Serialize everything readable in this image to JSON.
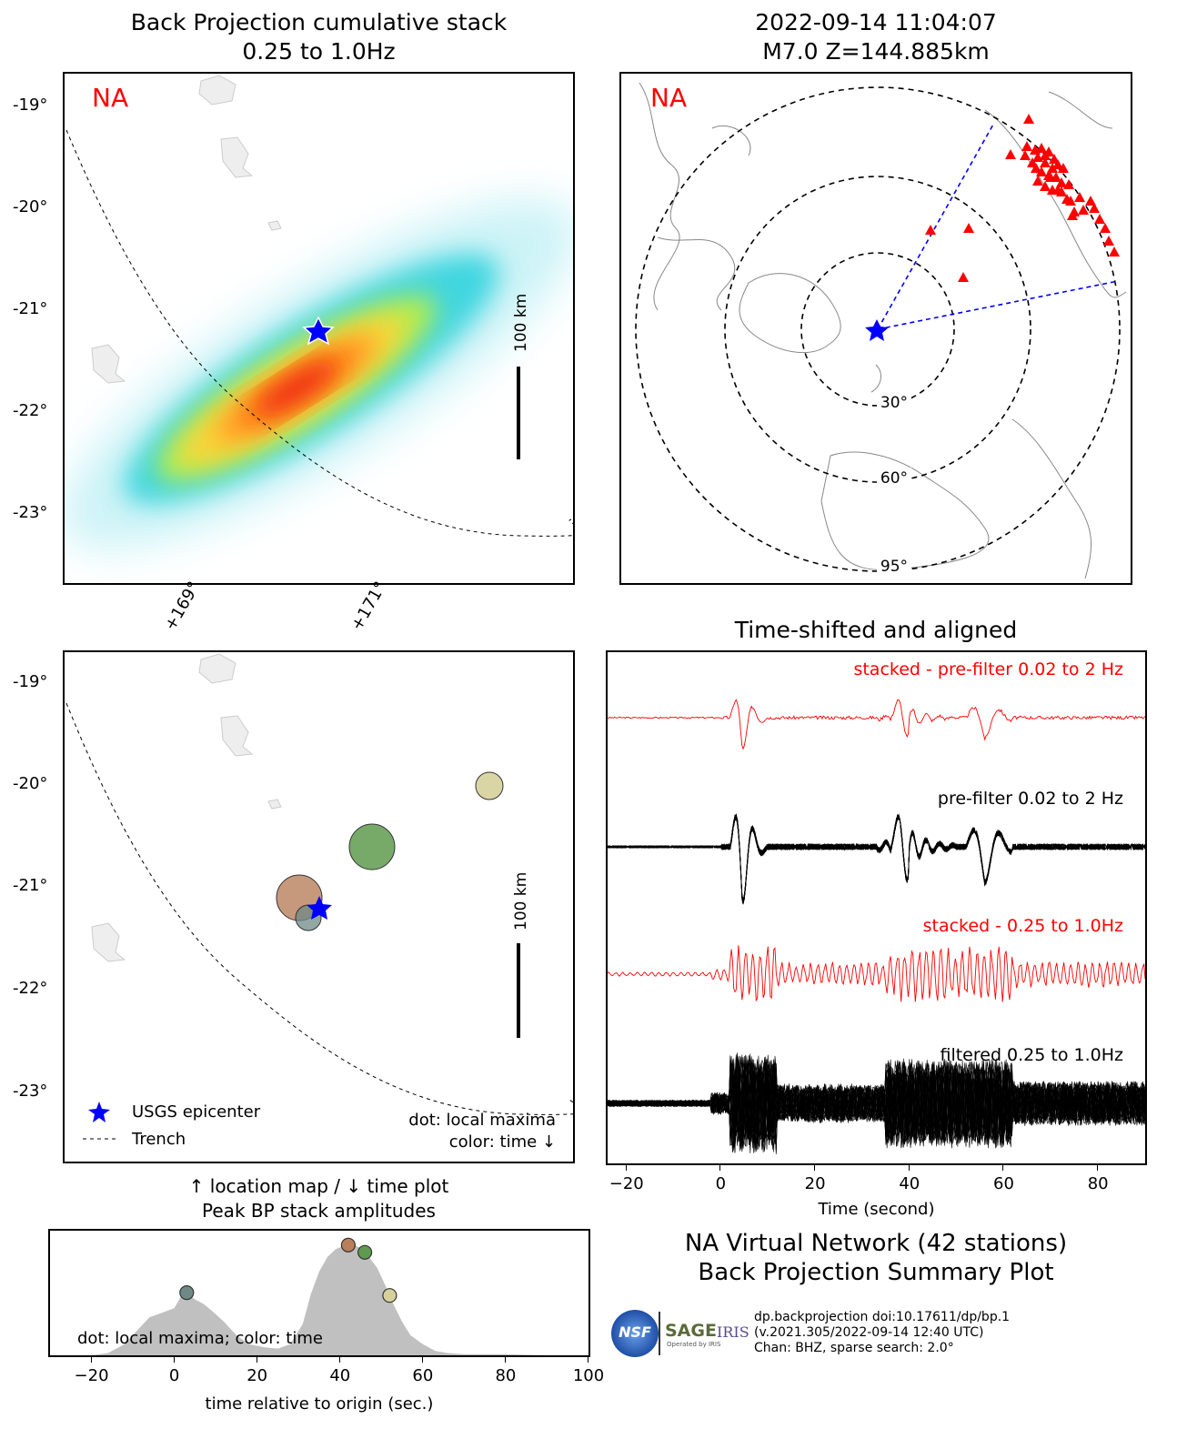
{
  "bp_map": {
    "title": "Back Projection cumulative stack",
    "subtitle": "0.25 to 1.0Hz",
    "network_label": "NA",
    "lat_ticks": [
      "-19°",
      "-20°",
      "-21°",
      "-22°",
      "-23°"
    ],
    "lon_ticks": [
      "+169°",
      "+171°"
    ],
    "scale_label": "100 km"
  },
  "globe": {
    "title_time": "2022-09-14 11:04:07",
    "title_event": "M7.0 Z=144.885km",
    "network_label": "NA",
    "ring_labels": [
      "30°",
      "60°",
      "95°"
    ]
  },
  "maxima_map": {
    "lat_ticks": [
      "-19°",
      "-20°",
      "-21°",
      "-22°",
      "-23°"
    ],
    "scale_label": "100 km",
    "legend_epicenter": "USGS epicenter",
    "legend_trench": "Trench",
    "note_line1": "dot: local maxima",
    "note_line2": "color: time ↓",
    "caption_line1": "↑ location map / ↓ time plot",
    "caption_line2": "Peak BP stack amplitudes"
  },
  "colors": {
    "epicenter": "#0000ff",
    "stations": "#ff0000",
    "stack_trace": "#ff0000",
    "trace": "#000000",
    "envelope": "#c0c0c0",
    "max_orange": "#b87f5d",
    "max_green": "#5f9a4f",
    "max_gray": "#6f8a86",
    "max_khaki": "#d6d09a"
  },
  "traces": {
    "title": "Time-shifted and aligned",
    "label_stack_pre": "stacked - pre-filter 0.02 to 2 Hz",
    "label_pre": "pre-filter 0.02 to 2 Hz",
    "label_stack_filt": "stacked - 0.25 to 1.0Hz",
    "label_filt": "filtered 0.25 to 1.0Hz",
    "xlabel": "Time (second)",
    "x_ticks": [
      "−20",
      "0",
      "20",
      "40",
      "60",
      "80"
    ]
  },
  "chart_data": {
    "type": "area",
    "xlabel": "time relative to origin (sec.)",
    "xlim": [
      -30,
      100
    ],
    "x_ticks": [
      "−20",
      "0",
      "20",
      "40",
      "60",
      "80",
      "100"
    ],
    "annotation": "dot: local maxima; color: time",
    "x": [
      -30,
      -20,
      -16,
      -12,
      -9,
      -6,
      -3,
      0,
      2,
      3,
      5,
      7,
      9,
      12,
      15,
      18,
      22,
      25,
      28,
      31,
      33,
      35,
      37,
      39,
      41,
      43,
      45,
      47,
      49,
      51,
      53,
      55,
      57,
      60,
      63,
      66,
      70,
      80,
      90,
      100
    ],
    "values": [
      0,
      0,
      0.02,
      0.1,
      0.22,
      0.34,
      0.38,
      0.42,
      0.55,
      0.56,
      0.5,
      0.46,
      0.4,
      0.3,
      0.18,
      0.1,
      0.07,
      0.06,
      0.1,
      0.28,
      0.55,
      0.75,
      0.88,
      0.95,
      0.98,
      0.99,
      0.96,
      0.88,
      0.78,
      0.62,
      0.45,
      0.3,
      0.18,
      0.1,
      0.04,
      0.02,
      0.01,
      0.01,
      0,
      0
    ],
    "maxima": [
      {
        "t": 3,
        "color": "max_gray"
      },
      {
        "t": 42,
        "color": "max_orange"
      },
      {
        "t": 46,
        "color": "max_green"
      },
      {
        "t": 52,
        "color": "max_khaki"
      }
    ]
  },
  "footer": {
    "network_title": "NA Virtual Network (42 stations)",
    "summary_title": "Back Projection Summary Plot",
    "logo_nsf": "NSF",
    "logo_sage": "SAGE",
    "logo_sage_sub": "Operated by IRIS",
    "logo_iris": "IRIS",
    "credit1": "dp.backprojection doi:10.17611/dp/bp.1",
    "credit2": "(v.2021.305/2022-09-14 12:40 UTC)",
    "credit3": "Chan: BHZ, sparse search: 2.0°"
  }
}
